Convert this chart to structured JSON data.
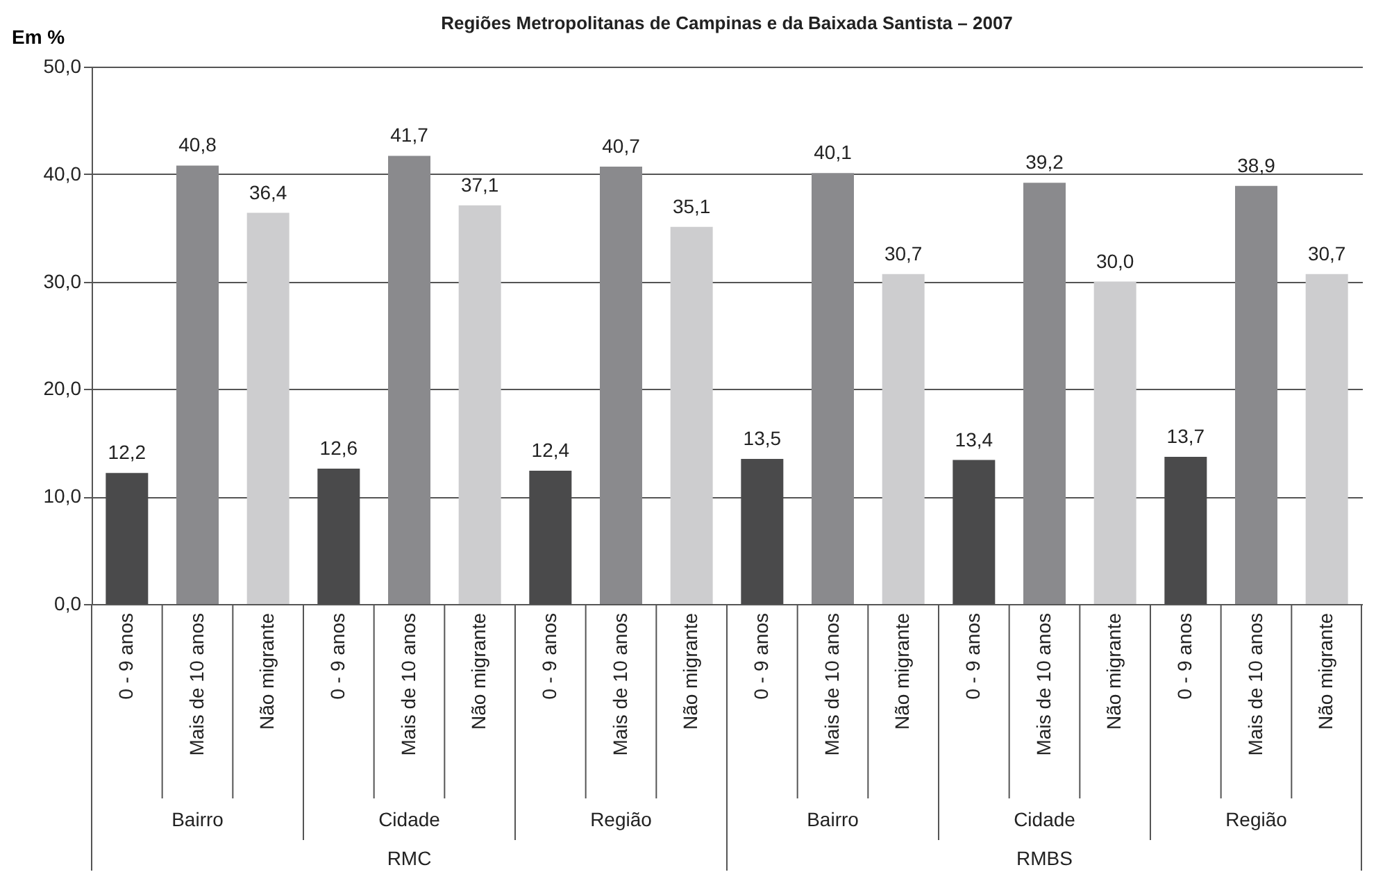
{
  "chart_data": {
    "type": "bar",
    "title": "Regiões Metropolitanas de Campinas e da Baixada Santista – 2007",
    "ylabel": "Em %",
    "categories": [
      "0 - 9 anos",
      "Mais de 10 anos",
      "Não migrante",
      "0 - 9 anos",
      "Mais de 10 anos",
      "Não migrante",
      "0 - 9 anos",
      "Mais de 10 anos",
      "Não migrante",
      "0 - 9 anos",
      "Mais de 10 anos",
      "Não migrante",
      "0 - 9 anos",
      "Mais de 10 anos",
      "Não migrante",
      "0 - 9 anos",
      "Mais de 10 anos",
      "Não migrante"
    ],
    "values": [
      12.2,
      40.8,
      36.4,
      12.6,
      41.7,
      37.1,
      12.4,
      40.7,
      35.1,
      13.5,
      40.1,
      30.7,
      13.4,
      39.2,
      30.0,
      13.7,
      38.9,
      30.7
    ],
    "value_labels": [
      "12,2",
      "40,8",
      "36,4",
      "12,6",
      "41,7",
      "37,1",
      "12,4",
      "40,7",
      "35,1",
      "13,5",
      "40,1",
      "30,7",
      "13,4",
      "39,2",
      "30,0",
      "13,7",
      "38,9",
      "30,7"
    ],
    "colors": [
      "#4a4a4b",
      "#8a8a8d",
      "#cdcdcf",
      "#4a4a4b",
      "#8a8a8d",
      "#cdcdcf",
      "#4a4a4b",
      "#8a8a8d",
      "#cdcdcf",
      "#4a4a4b",
      "#8a8a8d",
      "#cdcdcf",
      "#4a4a4b",
      "#8a8a8d",
      "#cdcdcf",
      "#4a4a4b",
      "#8a8a8d",
      "#cdcdcf"
    ],
    "ylim": [
      0,
      50
    ],
    "yticks": [
      {
        "value": 0,
        "label": "0,0"
      },
      {
        "value": 10,
        "label": "10,0"
      },
      {
        "value": 20,
        "label": "20,0"
      },
      {
        "value": 30,
        "label": "30,0"
      },
      {
        "value": 40,
        "label": "40,0"
      },
      {
        "value": 50,
        "label": "50,0"
      }
    ],
    "grid": "y",
    "annotations": [
      "Bairro",
      "Cidade",
      "Região",
      "Bairro",
      "Cidade",
      "Região",
      "RMC",
      "RMBS"
    ]
  }
}
